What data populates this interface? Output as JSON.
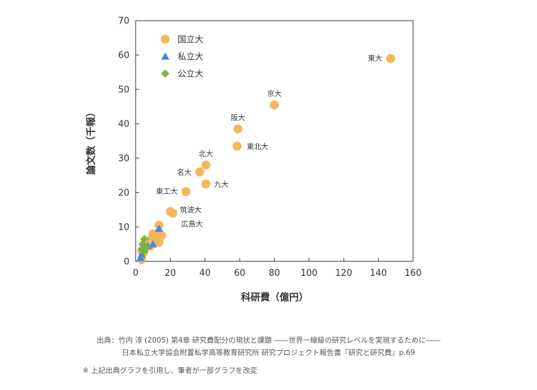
{
  "chart_data": {
    "type": "scatter",
    "xlabel": "科研費（億円）",
    "ylabel": "論文数（千報）",
    "xlim": [
      0,
      160
    ],
    "ylim": [
      0,
      70
    ],
    "xticks": [
      "0",
      "20",
      "40",
      "60",
      "80",
      "100",
      "120",
      "140",
      "160"
    ],
    "yticks": [
      "0",
      "10",
      "20",
      "30",
      "40",
      "50",
      "60",
      "70"
    ],
    "grid": false,
    "legend_position": "top-left",
    "series": [
      {
        "name": "国立大",
        "marker": "circle",
        "color": "#F4B75A",
        "points": [
          {
            "x": 147,
            "y": 59,
            "label": "東大"
          },
          {
            "x": 80,
            "y": 45.5,
            "label": "京大"
          },
          {
            "x": 59,
            "y": 38.5,
            "label": "阪大"
          },
          {
            "x": 58.5,
            "y": 33.5,
            "label": "東北大"
          },
          {
            "x": 40.5,
            "y": 28,
            "label": "北大"
          },
          {
            "x": 37,
            "y": 26,
            "label": "名大"
          },
          {
            "x": 40.5,
            "y": 22.5,
            "label": "九大"
          },
          {
            "x": 29,
            "y": 20.3,
            "label": "東工大"
          },
          {
            "x": 20,
            "y": 14.5,
            "label": "筑波大"
          },
          {
            "x": 21.5,
            "y": 14,
            "label": "広島大"
          },
          {
            "x": 13.5,
            "y": 10.5
          },
          {
            "x": 10,
            "y": 8
          },
          {
            "x": 12,
            "y": 8
          },
          {
            "x": 15,
            "y": 7.5
          },
          {
            "x": 9,
            "y": 6.5
          },
          {
            "x": 11,
            "y": 6
          },
          {
            "x": 13.5,
            "y": 5.5
          },
          {
            "x": 7.5,
            "y": 5.5
          },
          {
            "x": 6,
            "y": 4.5
          },
          {
            "x": 8.5,
            "y": 4.5
          },
          {
            "x": 5,
            "y": 3.5
          },
          {
            "x": 3.5,
            "y": 3
          },
          {
            "x": 4.5,
            "y": 2.5
          },
          {
            "x": 3.5,
            "y": 0.5
          }
        ]
      },
      {
        "name": "私立大",
        "marker": "triangle",
        "color": "#4A86E8",
        "points": [
          {
            "x": 13.5,
            "y": 9.5
          },
          {
            "x": 10,
            "y": 5
          },
          {
            "x": 7,
            "y": 4.5
          },
          {
            "x": 5,
            "y": 3.5
          },
          {
            "x": 3.5,
            "y": 2
          },
          {
            "x": 2.8,
            "y": 1
          }
        ]
      },
      {
        "name": "公立大",
        "marker": "diamond",
        "color": "#7CB342",
        "points": [
          {
            "x": 5,
            "y": 6.5
          },
          {
            "x": 4,
            "y": 5
          },
          {
            "x": 6,
            "y": 4
          },
          {
            "x": 3.5,
            "y": 3.5
          },
          {
            "x": 5,
            "y": 3
          }
        ]
      }
    ]
  },
  "source": {
    "line1": "出典：竹内 淳 (2005) 第4章 研究費配分の現状と課題 ――世界一線級の研究レベルを実現するために――",
    "line2": "日本私立大学協会附置私学高等教育研究所 研究プロジェクト報告書『研究と研究費』p.69"
  },
  "note": "※ 上記出典グラフを引用し、筆者が一部グラフを改変"
}
